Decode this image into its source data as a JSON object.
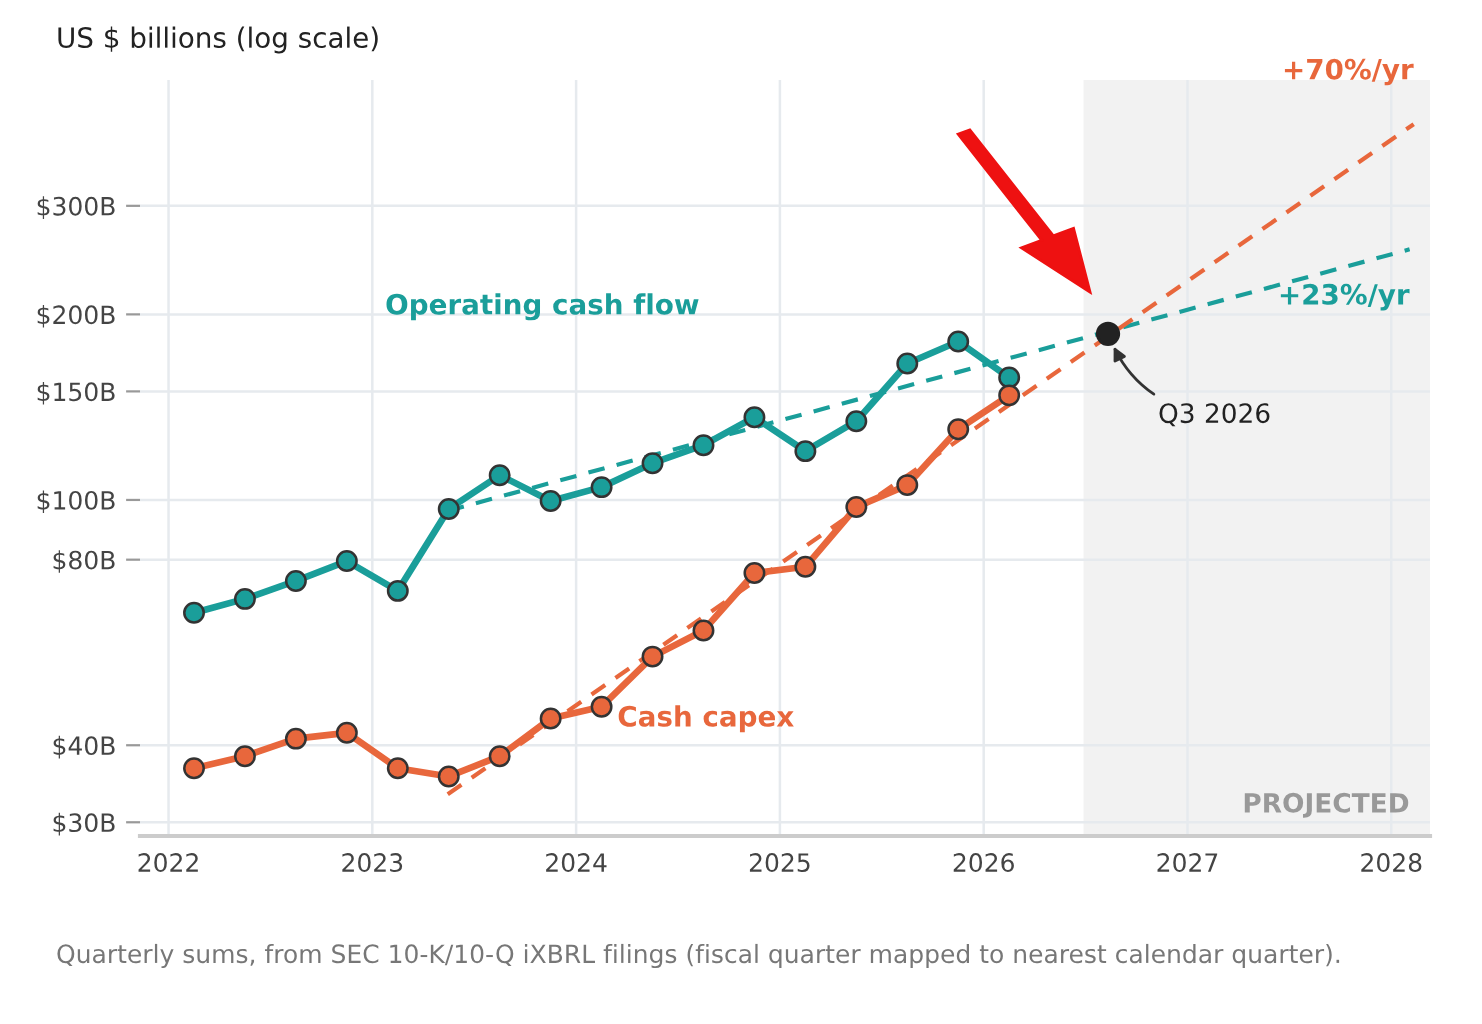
{
  "chart_data": {
    "type": "line",
    "ylabel": "US $ billions (log scale)",
    "log": true,
    "grid": true,
    "marker": "circle",
    "line_style": "solid",
    "xlim": [
      2021.86,
      2028.19
    ],
    "xticks": [
      2022,
      2023,
      2024,
      2025,
      2026,
      2027,
      2028
    ],
    "ylim": [
      28.5,
      480
    ],
    "yticks": [
      {
        "value": 30,
        "label": "$30B"
      },
      {
        "value": 40,
        "label": "$40B"
      },
      {
        "value": 80,
        "label": "$80B"
      },
      {
        "value": 100,
        "label": "$100B"
      },
      {
        "value": 150,
        "label": "$150B"
      },
      {
        "value": 200,
        "label": "$200B"
      },
      {
        "value": 300,
        "label": "$300B"
      }
    ],
    "series": [
      {
        "name": "Operating cash flow",
        "color": "#1a9e9a",
        "x": [
          2022.125,
          2022.375,
          2022.625,
          2022.875,
          2023.125,
          2023.375,
          2023.625,
          2023.875,
          2024.125,
          2024.375,
          2024.625,
          2024.875,
          2025.125,
          2025.375,
          2025.625,
          2025.875,
          2026.125
        ],
        "values": [
          65.6,
          69.1,
          73.9,
          79.6,
          71.2,
          96.7,
          109.7,
          99.6,
          104.9,
          114.7,
          122.7,
          136.2,
          120.0,
          134.2,
          166.5,
          180.7,
          158.0
        ]
      },
      {
        "name": "Cash capex",
        "color": "#e8673c",
        "x": [
          2022.125,
          2022.375,
          2022.625,
          2022.875,
          2023.125,
          2023.375,
          2023.625,
          2023.875,
          2024.125,
          2024.375,
          2024.625,
          2024.875,
          2025.125,
          2025.375,
          2025.625,
          2025.875,
          2026.125
        ],
        "values": [
          36.7,
          38.4,
          41.0,
          41.9,
          36.7,
          35.6,
          38.4,
          44.2,
          46.2,
          55.7,
          61.4,
          76.1,
          77.9,
          97.4,
          105.7,
          130.2,
          147.8
        ]
      },
      {
        "type": "line",
        "line_style": "dashed",
        "marker": "none",
        "color": "#1a9e9a",
        "x": [
          2023.37,
          2028.09
        ],
        "values": [
          96,
          255
        ]
      },
      {
        "type": "line",
        "line_style": "dashed",
        "marker": "none",
        "color": "#e8673c",
        "x": [
          2023.37,
          2028.11
        ],
        "values": [
          33.3,
          407
        ]
      },
      {
        "type": "scatter",
        "color": "#222222",
        "x": [
          2026.61
        ],
        "values": [
          186
        ]
      }
    ],
    "bands": [
      {
        "axis": "x",
        "from": 2026.49,
        "to": 2028.19,
        "label": "PROJECTED",
        "color": "#f2f2f2"
      }
    ],
    "annotations": [
      {
        "text": "+70%/yr",
        "x": 2028.11,
        "y": 407
      },
      {
        "text": "+23%/yr",
        "x": 2028.09,
        "y": 255
      },
      {
        "text": "Q3 2026",
        "x": 2026.61,
        "y": 186
      },
      "Quarterly sums, from SEC 10-K/10-Q iXBRL filings (fiscal quarter mapped to nearest calendar quarter)."
    ]
  }
}
